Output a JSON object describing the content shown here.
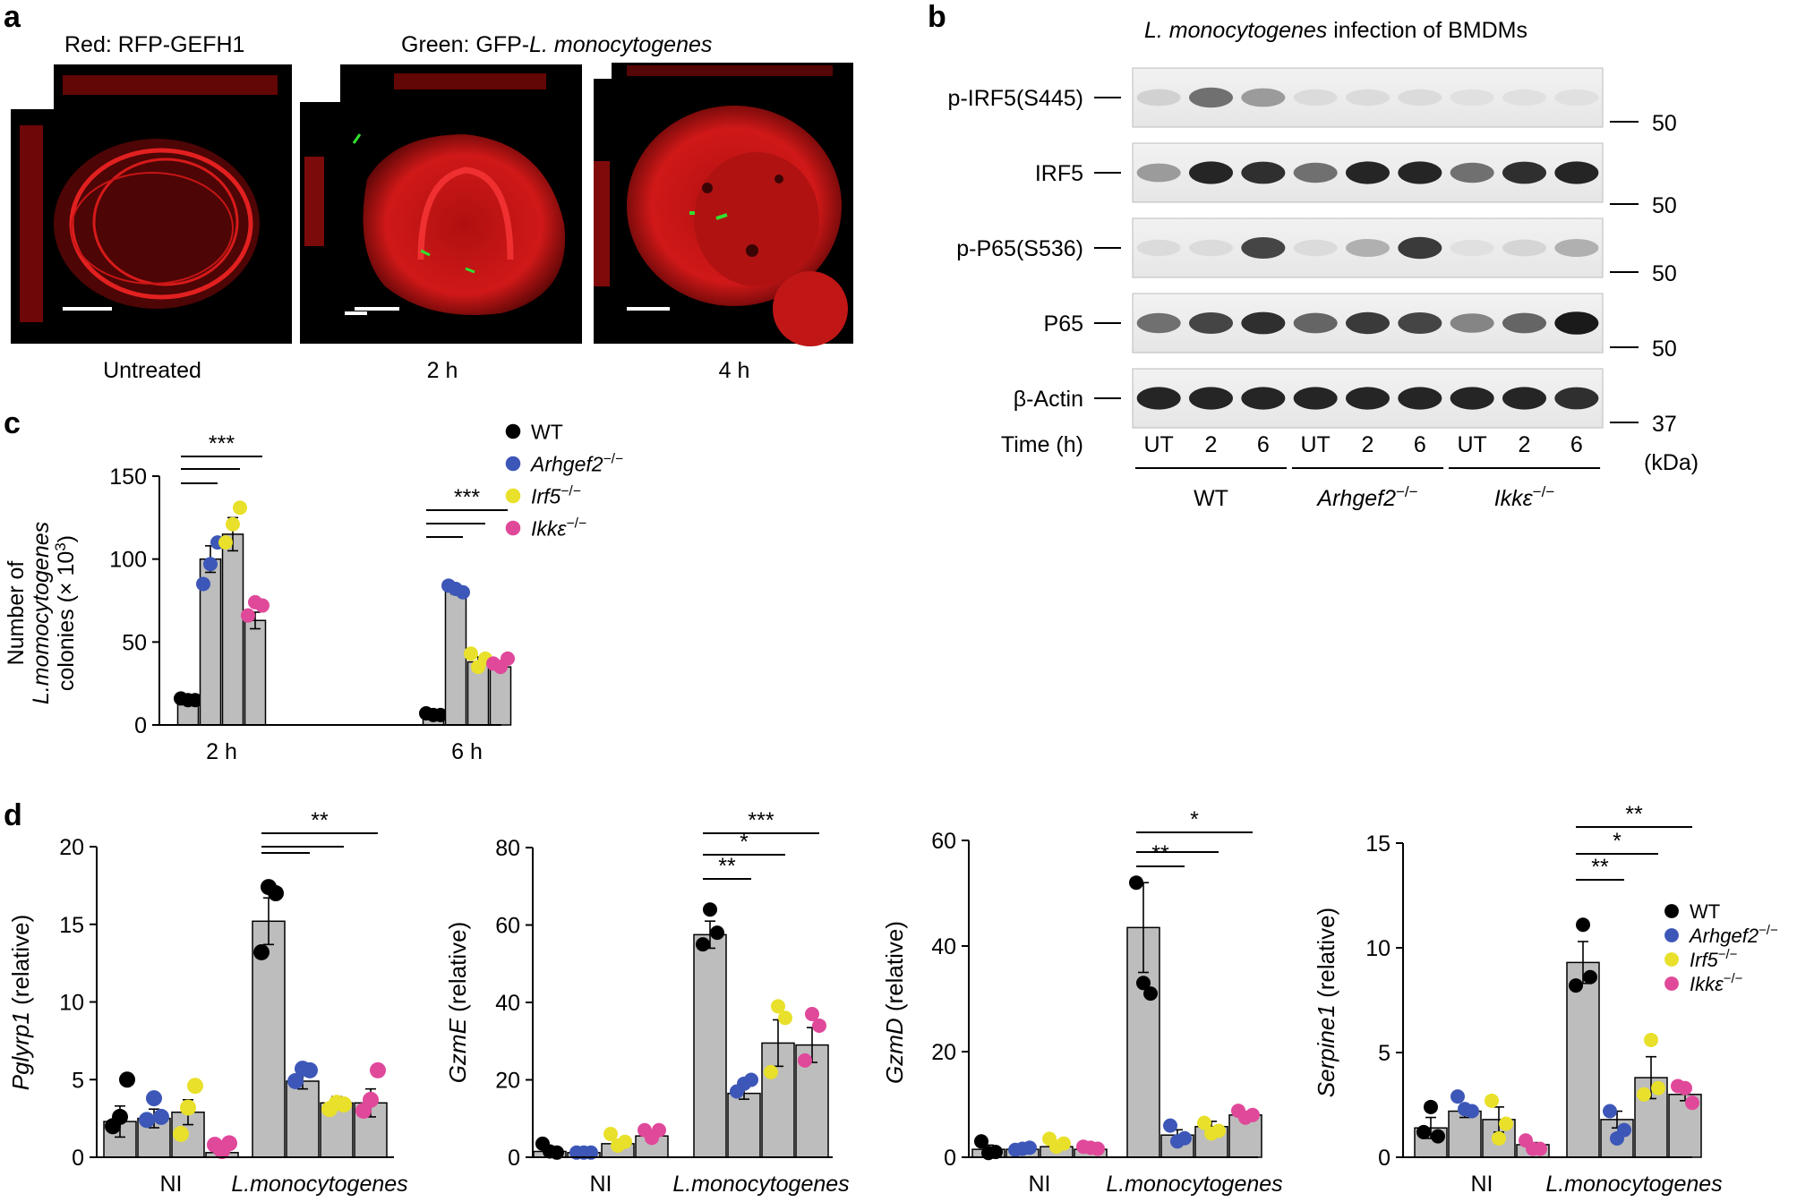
{
  "panel_a": {
    "letter": "a",
    "label_red": "Red: RFP-GEFH1",
    "label_green_prefix": "Green: GFP-",
    "label_green_italic": "L. monocytogenes",
    "images": [
      {
        "caption": "Untreated"
      },
      {
        "caption": "2 h"
      },
      {
        "caption": "4 h"
      }
    ]
  },
  "panel_b": {
    "letter": "b",
    "title_italic": "L. monocytogenes",
    "title_rest": " infection of BMDMs",
    "bands": [
      {
        "label": "p-IRF5(S445)",
        "marker": "50"
      },
      {
        "label": "IRF5",
        "marker": "50"
      },
      {
        "label": "p-P65(S536)",
        "marker": "50"
      },
      {
        "label": "P65",
        "marker": "50"
      },
      {
        "label": "β-Actin",
        "marker": "37"
      }
    ],
    "time_label": "Time (h)",
    "lanes": [
      "UT",
      "2",
      "6",
      "UT",
      "2",
      "6",
      "UT",
      "2",
      "6"
    ],
    "groups": [
      "WT",
      "Arhgef2",
      "Ikkε"
    ],
    "group_sup": "−/−",
    "kda": "(kDa)"
  },
  "legend": {
    "entries": [
      {
        "name": "WT",
        "sup": "",
        "italic": false,
        "color": "#000000"
      },
      {
        "name": "Arhgef2",
        "sup": "−/−",
        "italic": true,
        "color": "#3d57b8"
      },
      {
        "name": "Irf5",
        "sup": "−/−",
        "italic": true,
        "color": "#e8e02a"
      },
      {
        "name": "Ikkε",
        "sup": "−/−",
        "italic": true,
        "color": "#e0489a"
      }
    ]
  },
  "chart_data": [
    {
      "panel": "c",
      "type": "bar",
      "ylabel_line1": "Number of",
      "ylabel_line2": "L.momocytogenes",
      "ylabel_line3": "colonies (× 10",
      "ylabel_sup": "3",
      "ylim": [
        0,
        150
      ],
      "yticks": [
        0,
        50,
        100,
        150
      ],
      "categories": [
        "2 h",
        "6 h"
      ],
      "series": [
        {
          "name": "WT",
          "values": [
            15,
            6
          ],
          "err": [
            1,
            1
          ],
          "points": [
            [
              16,
              15,
              15
            ],
            [
              7,
              6,
              6
            ]
          ]
        },
        {
          "name": "Arhgef2",
          "values": [
            100,
            81
          ],
          "err": [
            8,
            2
          ],
          "points": [
            [
              85,
              97,
              110
            ],
            [
              84,
              82,
              80
            ]
          ]
        },
        {
          "name": "Irf5",
          "values": [
            115,
            38
          ],
          "err": [
            10,
            3
          ],
          "points": [
            [
              110,
              121,
              131
            ],
            [
              43,
              35,
              40
            ]
          ]
        },
        {
          "name": "Ikkε",
          "values": [
            63,
            35
          ],
          "err": [
            5,
            2
          ],
          "points": [
            [
              66,
              74,
              72
            ],
            [
              37,
              35,
              40
            ]
          ]
        }
      ],
      "significance": [
        {
          "group": 0,
          "label": "***"
        },
        {
          "group": 1,
          "label": "***"
        }
      ]
    },
    {
      "panel": "d1",
      "type": "bar",
      "ylabel_italic": "Pglyrp1",
      "ylabel_rest": " (relative)",
      "ylim": [
        0,
        20
      ],
      "yticks": [
        0,
        5,
        10,
        15,
        20
      ],
      "categories": [
        "NI",
        "L.monocytogenes"
      ],
      "series": [
        {
          "name": "WT",
          "values": [
            2.3,
            15.2
          ],
          "err": [
            1.0,
            1.5
          ],
          "points": [
            [
              2.0,
              2.6,
              5.0
            ],
            [
              13.2,
              17.4,
              17.0
            ]
          ]
        },
        {
          "name": "Arhgef2",
          "values": [
            2.5,
            4.9
          ],
          "err": [
            0.6,
            0.5
          ],
          "points": [
            [
              2.4,
              3.8,
              2.6
            ],
            [
              4.9,
              5.7,
              5.6
            ]
          ]
        },
        {
          "name": "Irf5",
          "values": [
            2.9,
            3.5
          ],
          "err": [
            0.8,
            0.4
          ],
          "points": [
            [
              1.5,
              3.2,
              4.6
            ],
            [
              3.1,
              3.5,
              3.4
            ]
          ]
        },
        {
          "name": "Ikkε",
          "values": [
            0.3,
            3.5
          ],
          "err": [
            0.3,
            0.9
          ],
          "points": [
            [
              0.8,
              0.4,
              0.9
            ],
            [
              3.0,
              3.7,
              5.6
            ]
          ]
        }
      ],
      "significance": [
        {
          "group": 1,
          "label": "**"
        }
      ]
    },
    {
      "panel": "d2",
      "type": "bar",
      "ylabel_italic": "GzmE",
      "ylabel_rest": " (relative)",
      "ylim": [
        0,
        80
      ],
      "yticks": [
        0,
        20,
        40,
        60,
        80
      ],
      "categories": [
        "NI",
        "L.monocytogenes"
      ],
      "series": [
        {
          "name": "WT",
          "values": [
            1.5,
            57.5
          ],
          "err": [
            0.6,
            3.5
          ],
          "points": [
            [
              3.5,
              1.5,
              1.2
            ],
            [
              55,
              64,
              58
            ]
          ]
        },
        {
          "name": "Arhgef2",
          "values": [
            1.2,
            16.5
          ],
          "err": [
            0.2,
            1.5
          ],
          "points": [
            [
              1.2,
              1.2,
              1.2
            ],
            [
              17,
              19,
              20
            ]
          ]
        },
        {
          "name": "Irf5",
          "values": [
            3.5,
            29.5
          ],
          "err": [
            1.0,
            6.0
          ],
          "points": [
            [
              6,
              3,
              4
            ],
            [
              22,
              39,
              36
            ]
          ]
        },
        {
          "name": "Ikkε",
          "values": [
            5.5,
            29.0
          ],
          "err": [
            1.0,
            4.5
          ],
          "points": [
            [
              7,
              5,
              7
            ],
            [
              25,
              37,
              34
            ]
          ]
        }
      ],
      "significance": [
        {
          "label": "**"
        },
        {
          "label": "*"
        },
        {
          "label": "***"
        }
      ]
    },
    {
      "panel": "d3",
      "type": "bar",
      "ylabel_italic": "GzmD",
      "ylabel_rest": " (relative)",
      "ylim": [
        0,
        60
      ],
      "yticks": [
        0,
        20,
        40,
        60
      ],
      "categories": [
        "NI",
        "L.monocytogenes"
      ],
      "series": [
        {
          "name": "WT",
          "values": [
            1.5,
            43.5
          ],
          "err": [
            0.8,
            8.5
          ],
          "points": [
            [
              3.0,
              0.8,
              1.0
            ],
            [
              52,
              33,
              31
            ]
          ]
        },
        {
          "name": "Arhgef2",
          "values": [
            1.5,
            4.2
          ],
          "err": [
            0.3,
            1.0
          ],
          "points": [
            [
              1.4,
              1.6,
              1.8
            ],
            [
              6.0,
              3.0,
              3.6
            ]
          ]
        },
        {
          "name": "Irf5",
          "values": [
            2.0,
            5.8
          ],
          "err": [
            0.5,
            1.0
          ],
          "points": [
            [
              3.5,
              2.0,
              2.6
            ],
            [
              6.5,
              4.5,
              5.0
            ]
          ]
        },
        {
          "name": "Ikkε",
          "values": [
            1.5,
            8.0
          ],
          "err": [
            0.3,
            0.6
          ],
          "points": [
            [
              2.0,
              1.8,
              1.6
            ],
            [
              8.8,
              7.5,
              8.0
            ]
          ]
        }
      ],
      "significance": [
        {
          "label": "**"
        },
        {
          "label": "*"
        }
      ]
    },
    {
      "panel": "d4",
      "type": "bar",
      "ylabel_italic": "Serpine1",
      "ylabel_rest": " (relative)",
      "ylim": [
        0,
        15
      ],
      "yticks": [
        0,
        5,
        10,
        15
      ],
      "categories": [
        "NI",
        "L.monocytogenes"
      ],
      "series": [
        {
          "name": "WT",
          "values": [
            1.4,
            9.3
          ],
          "err": [
            0.5,
            1.0
          ],
          "points": [
            [
              1.2,
              2.4,
              1.0
            ],
            [
              8.2,
              11.1,
              8.6
            ]
          ]
        },
        {
          "name": "Arhgef2",
          "values": [
            2.2,
            1.8
          ],
          "err": [
            0.3,
            0.4
          ],
          "points": [
            [
              2.9,
              2.3,
              2.2
            ],
            [
              2.2,
              0.9,
              1.3
            ]
          ]
        },
        {
          "name": "Irf5",
          "values": [
            1.8,
            3.8
          ],
          "err": [
            0.6,
            1.0
          ],
          "points": [
            [
              2.7,
              0.9,
              1.6
            ],
            [
              3.0,
              5.6,
              3.3
            ]
          ]
        },
        {
          "name": "Ikkε",
          "values": [
            0.6,
            3.0
          ],
          "err": [
            0.1,
            0.3
          ],
          "points": [
            [
              0.8,
              0.4,
              0.4
            ],
            [
              3.4,
              3.3,
              2.6
            ]
          ]
        }
      ],
      "significance": [
        {
          "label": "**"
        },
        {
          "label": "*"
        },
        {
          "label": "**"
        }
      ]
    }
  ],
  "panel_c_letter": "c",
  "panel_d_letter": "d"
}
